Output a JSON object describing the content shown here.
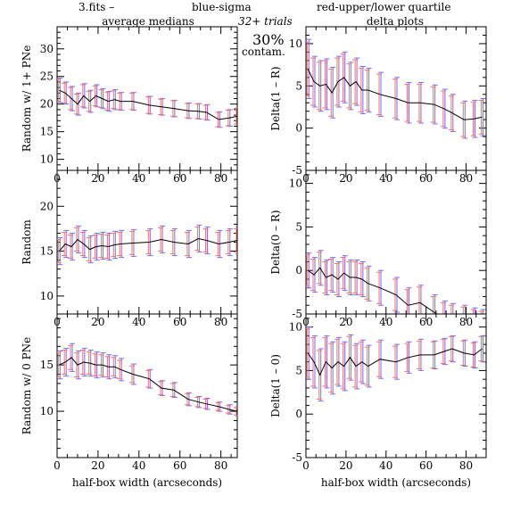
{
  "header": {
    "file": "3.fits  –",
    "blue": "blue-sigma",
    "red": "red-upper/lower quartile",
    "trials": "32+ trials",
    "contam_pct": "30%",
    "contam_word": "contam.",
    "left_title": "average medians",
    "right_title": "delta plots"
  },
  "colors": {
    "blue": "#6f6fff",
    "red": "#ff6a6a",
    "line": "#000000"
  },
  "chart_data": [
    {
      "type": "line",
      "panel": "left-top",
      "ylabel": "Random w/ 1+ PNe",
      "xlabel": "",
      "xlim": [
        0,
        88
      ],
      "ylim": [
        8,
        34
      ],
      "xticks": [
        0,
        20,
        40,
        60,
        80
      ],
      "yticks": [
        10,
        15,
        20,
        25,
        30
      ],
      "x": [
        1,
        4,
        7,
        10,
        13,
        16,
        19,
        22,
        25,
        28,
        31,
        37,
        45,
        51,
        57,
        64,
        69,
        73,
        79,
        84,
        88
      ],
      "y": [
        22.5,
        22.0,
        21.0,
        20.0,
        21.5,
        20.5,
        21.5,
        21.0,
        20.5,
        20.8,
        20.5,
        20.5,
        19.8,
        19.5,
        19.2,
        18.8,
        18.7,
        18.5,
        17.2,
        17.5,
        17.8
      ],
      "sigma": [
        2.2,
        2.0,
        2.2,
        2.0,
        2.2,
        2.0,
        2.0,
        1.8,
        1.8,
        1.8,
        1.6,
        1.6,
        1.6,
        1.5,
        1.5,
        1.4,
        1.4,
        1.4,
        1.4,
        1.5,
        1.5
      ],
      "quartile": [
        2.0,
        1.8,
        2.0,
        1.8,
        2.0,
        1.8,
        1.8,
        1.6,
        1.6,
        1.6,
        1.5,
        1.5,
        1.5,
        1.4,
        1.4,
        1.3,
        1.3,
        1.3,
        1.3,
        1.4,
        1.4
      ]
    },
    {
      "type": "line",
      "panel": "left-mid",
      "ylabel": "Random",
      "xlabel": "",
      "xlim": [
        0,
        88
      ],
      "ylim": [
        8,
        24
      ],
      "xticks": [
        0,
        20,
        40,
        60,
        80
      ],
      "yticks": [
        10,
        15,
        20
      ],
      "x": [
        1,
        4,
        7,
        10,
        13,
        16,
        19,
        22,
        25,
        28,
        31,
        37,
        45,
        51,
        57,
        64,
        69,
        73,
        79,
        84,
        88
      ],
      "y": [
        15.0,
        15.8,
        15.5,
        16.3,
        15.8,
        15.2,
        15.5,
        15.6,
        15.5,
        15.7,
        15.8,
        15.9,
        16.0,
        16.3,
        16.0,
        15.8,
        16.4,
        16.2,
        15.8,
        16.0,
        16.2
      ],
      "sigma": [
        1.5,
        1.5,
        1.5,
        1.5,
        1.5,
        1.5,
        1.5,
        1.5,
        1.5,
        1.5,
        1.5,
        1.5,
        1.5,
        1.5,
        1.5,
        1.5,
        1.5,
        1.5,
        1.5,
        1.5,
        1.5
      ],
      "quartile": [
        1.3,
        1.3,
        1.3,
        1.3,
        1.3,
        1.3,
        1.3,
        1.3,
        1.3,
        1.3,
        1.3,
        1.3,
        1.3,
        1.3,
        1.3,
        1.3,
        1.3,
        1.3,
        1.3,
        1.3,
        1.3
      ]
    },
    {
      "type": "line",
      "panel": "left-bot",
      "ylabel": "Random w/ 0 PNe",
      "xlabel": "half-box width (arcseconds)",
      "xlim": [
        0,
        88
      ],
      "ylim": [
        5,
        20.5
      ],
      "xticks": [
        0,
        20,
        40,
        60,
        80
      ],
      "yticks": [
        10,
        15
      ],
      "x": [
        1,
        4,
        7,
        10,
        13,
        16,
        19,
        22,
        25,
        28,
        31,
        37,
        45,
        51,
        57,
        64,
        69,
        73,
        79,
        84,
        88
      ],
      "y": [
        15.0,
        15.3,
        15.8,
        15.0,
        15.3,
        15.2,
        15.0,
        15.0,
        14.8,
        14.8,
        14.5,
        14.0,
        13.5,
        12.5,
        12.3,
        11.3,
        11.0,
        10.8,
        10.5,
        10.2,
        10.0
      ],
      "sigma": [
        1.5,
        1.5,
        1.5,
        1.5,
        1.5,
        1.4,
        1.4,
        1.3,
        1.3,
        1.2,
        1.2,
        1.1,
        1.0,
        0.8,
        0.8,
        0.7,
        0.6,
        0.6,
        0.5,
        0.5,
        0.5
      ],
      "quartile": [
        1.3,
        1.3,
        1.3,
        1.3,
        1.3,
        1.2,
        1.2,
        1.1,
        1.1,
        1.0,
        1.0,
        0.9,
        0.9,
        0.7,
        0.7,
        0.6,
        0.5,
        0.5,
        0.4,
        0.4,
        0.4
      ]
    },
    {
      "type": "line",
      "panel": "right-top",
      "ylabel": "Delta(1 – R)",
      "xlabel": "",
      "xlim": [
        0,
        90
      ],
      "ylim": [
        -5,
        12
      ],
      "xticks": [
        0,
        20,
        40,
        60,
        80
      ],
      "yticks": [
        -5,
        0,
        5,
        10
      ],
      "x": [
        1,
        4,
        7,
        10,
        13,
        16,
        19,
        22,
        25,
        28,
        31,
        37,
        45,
        51,
        57,
        64,
        69,
        73,
        79,
        84,
        88
      ],
      "y": [
        7.0,
        5.5,
        5.0,
        5.2,
        4.2,
        5.5,
        6.0,
        5.0,
        5.5,
        4.5,
        4.5,
        4.0,
        3.5,
        3.0,
        3.0,
        2.8,
        2.3,
        1.8,
        1.0,
        1.1,
        1.3
      ],
      "sigma": [
        3.5,
        3.0,
        3.0,
        3.0,
        3.0,
        3.0,
        3.0,
        2.8,
        2.8,
        2.8,
        2.6,
        2.6,
        2.5,
        2.4,
        2.4,
        2.3,
        2.3,
        2.2,
        2.2,
        2.2,
        2.2
      ],
      "quartile": [
        3.2,
        2.8,
        2.8,
        2.8,
        2.8,
        2.8,
        2.8,
        2.6,
        2.6,
        2.6,
        2.4,
        2.4,
        2.3,
        2.2,
        2.2,
        2.1,
        2.1,
        2.0,
        2.0,
        2.0,
        2.0
      ]
    },
    {
      "type": "line",
      "panel": "right-mid",
      "ylabel": "Delta(0 – R)",
      "xlabel": "",
      "xlim": [
        0,
        90
      ],
      "ylim": [
        -5,
        11.5
      ],
      "xticks": [
        0,
        20,
        40,
        60,
        80
      ],
      "yticks": [
        -5,
        0,
        5,
        10
      ],
      "x": [
        1,
        4,
        7,
        10,
        13,
        16,
        19,
        22,
        25,
        28,
        31,
        37,
        45,
        51,
        57,
        64,
        69,
        73,
        79,
        84,
        88
      ],
      "y": [
        0.0,
        -0.5,
        0.3,
        -0.8,
        -0.5,
        -1.0,
        -0.3,
        -0.8,
        -0.8,
        -1.0,
        -1.5,
        -2.0,
        -2.8,
        -4.0,
        -3.7,
        -4.8,
        -5.5,
        -5.8,
        -6.0,
        -6.3,
        -6.5
      ],
      "sigma": [
        2.0,
        2.0,
        2.0,
        2.0,
        2.0,
        2.0,
        2.0,
        2.0,
        2.0,
        2.0,
        2.0,
        2.0,
        2.0,
        2.0,
        2.0,
        2.0,
        2.0,
        2.0,
        2.0,
        2.0,
        2.0
      ],
      "quartile": [
        1.8,
        1.8,
        1.8,
        1.8,
        1.8,
        1.8,
        1.8,
        1.8,
        1.8,
        1.8,
        1.8,
        1.8,
        1.8,
        1.8,
        1.8,
        1.8,
        1.8,
        1.8,
        1.8,
        1.8,
        1.8
      ]
    },
    {
      "type": "line",
      "panel": "right-bot",
      "ylabel": "Delta(1 – 0)",
      "xlabel": "half-box width (arcseconds)",
      "xlim": [
        0,
        90
      ],
      "ylim": [
        -5,
        11.5
      ],
      "xticks": [
        0,
        20,
        40,
        60,
        80
      ],
      "yticks": [
        -5,
        0,
        5,
        10
      ],
      "x": [
        1,
        4,
        7,
        10,
        13,
        16,
        19,
        22,
        25,
        28,
        31,
        37,
        45,
        51,
        57,
        64,
        69,
        73,
        79,
        84,
        88
      ],
      "y": [
        7.0,
        6.0,
        4.5,
        6.0,
        5.3,
        6.0,
        5.5,
        6.5,
        5.5,
        6.0,
        5.5,
        6.3,
        6.0,
        6.5,
        6.8,
        6.8,
        7.2,
        7.5,
        7.0,
        6.8,
        7.5
      ],
      "sigma": [
        3.0,
        3.0,
        3.0,
        3.0,
        3.0,
        2.8,
        2.8,
        2.6,
        2.6,
        2.5,
        2.4,
        2.2,
        2.0,
        1.8,
        1.8,
        1.6,
        1.5,
        1.5,
        1.5,
        1.5,
        1.5
      ],
      "quartile": [
        2.8,
        2.8,
        2.8,
        2.8,
        2.8,
        2.6,
        2.6,
        2.4,
        2.4,
        2.3,
        2.2,
        2.0,
        1.8,
        1.6,
        1.6,
        1.5,
        1.4,
        1.4,
        1.4,
        1.4,
        1.4
      ]
    }
  ]
}
